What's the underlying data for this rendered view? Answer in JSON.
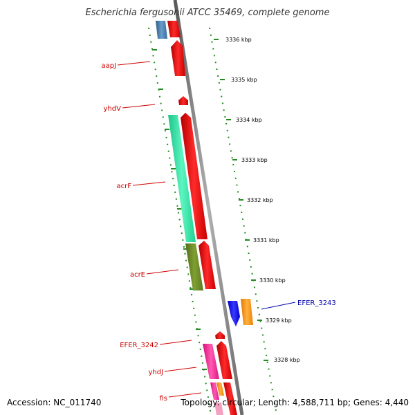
{
  "title": "Escherichia fergusonii ATCC 35469, complete genome",
  "footer": {
    "accession": "Accession: NC_011740",
    "summary": "Topology: circular; Length: 4,588,711 bp; Genes: 4,440"
  },
  "scale": {
    "unit": "kbp",
    "ticks": [
      {
        "label": "3336 kbp"
      },
      {
        "label": "3335 kbp"
      },
      {
        "label": "3334 kbp"
      },
      {
        "label": "3333 kbp"
      },
      {
        "label": "3332 kbp"
      },
      {
        "label": "3331 kbp"
      },
      {
        "label": "3330 kbp"
      },
      {
        "label": "3329 kbp"
      },
      {
        "label": "3328 kbp"
      }
    ]
  },
  "gene_labels": [
    {
      "name": "aapJ",
      "color": "#cc0000"
    },
    {
      "name": "yhdV",
      "color": "#cc0000"
    },
    {
      "name": "acrF",
      "color": "#cc0000"
    },
    {
      "name": "acrE",
      "color": "#cc0000"
    },
    {
      "name": "EFER_3242",
      "color": "#cc0000"
    },
    {
      "name": "yhdJ",
      "color": "#cc0000"
    },
    {
      "name": "fis",
      "color": "#cc0000"
    },
    {
      "name": "EFER_3243",
      "color": "#0000aa"
    }
  ],
  "colors": {
    "backbone": "#808080",
    "dots": "#228b22",
    "red": "#ff0000",
    "steelblue": "#4682b4",
    "aquamarine": "#33e8a8",
    "olive": "#6b8e23",
    "magenta": "#ff1493",
    "blue": "#0000ff",
    "orange": "#ff8c00"
  }
}
